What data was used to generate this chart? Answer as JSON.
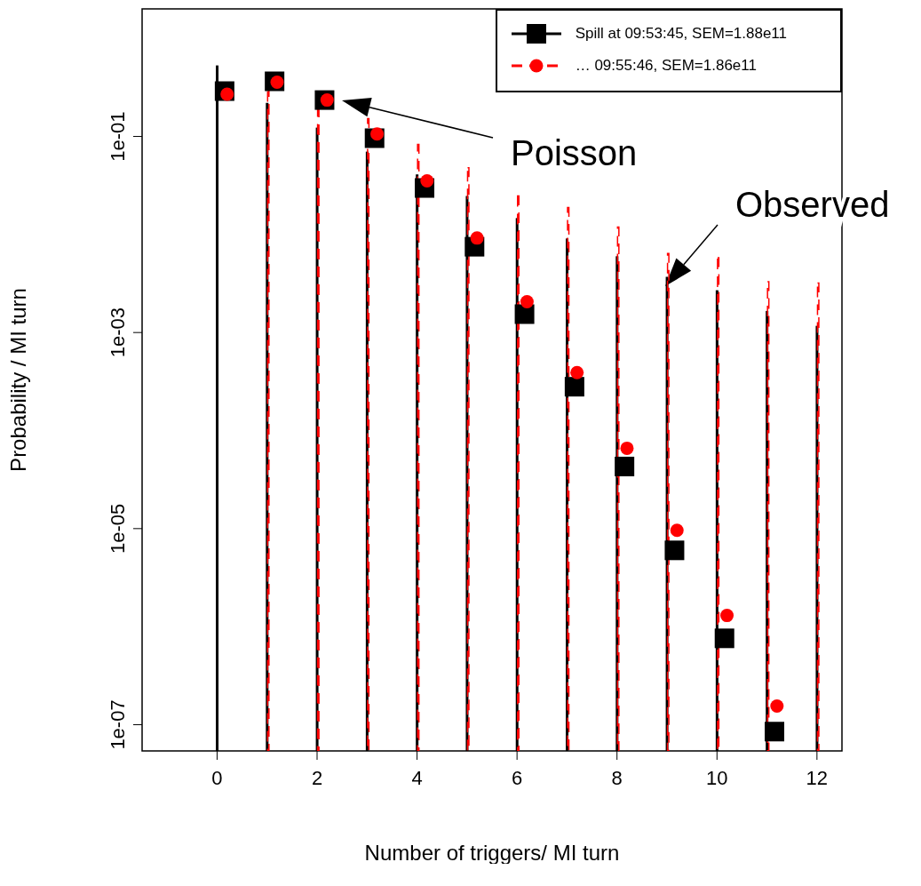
{
  "chart_data": {
    "type": "bar",
    "xlabel": "Number of triggers/ MI turn",
    "ylabel": "Probability / MI turn",
    "log": "y",
    "grid": false,
    "legend": "top right",
    "xlim": [
      -1.5,
      12.5
    ],
    "xticks": [
      0,
      2,
      4,
      6,
      8,
      10,
      12
    ],
    "ylim": [
      5.4e-08,
      2
    ],
    "yticks": [
      {
        "value": 0.1,
        "label": "1e-01"
      },
      {
        "value": 0.001,
        "label": "1e-03"
      },
      {
        "value": 1e-05,
        "label": "1e-05"
      },
      {
        "value": 1e-07,
        "label": "1e-07"
      }
    ],
    "series": [
      {
        "name": "Spill at 09:53:45, SEM=1.88e11",
        "color": "#000000",
        "line_style": "solid",
        "marker": "square",
        "x": [
          0,
          1,
          2,
          3,
          4,
          5,
          6,
          7,
          8,
          9,
          10,
          11,
          12
        ],
        "values": [
          0.53,
          0.22,
          0.123,
          0.07,
          0.041,
          0.0247,
          0.0147,
          0.0091,
          0.006,
          0.0037,
          0.0027,
          0.00166,
          0.00117
        ]
      },
      {
        "name": "… 09:55:46, SEM=1.86e11",
        "color": "#ff0000",
        "line_style": "dashed",
        "marker": "circle",
        "x": [
          1,
          2,
          3,
          4,
          5,
          6,
          7,
          8,
          9,
          10,
          11,
          12
        ],
        "values": [
          0.315,
          0.195,
          0.152,
          0.083,
          0.048,
          0.0247,
          0.0188,
          0.0119,
          0.0064,
          0.0058,
          0.0033,
          0.0032
        ]
      },
      {
        "type": "scatter",
        "color": "#000000",
        "marker": "square",
        "x": [
          0.15,
          1.15,
          2.15,
          3.15,
          4.15,
          5.15,
          6.15,
          7.15,
          8.15,
          9.15,
          10.15,
          11.15
        ],
        "values": [
          0.29,
          0.365,
          0.235,
          0.096,
          0.0298,
          0.0075,
          0.00154,
          0.00028,
          4.3e-05,
          6e-06,
          7.6e-07,
          8.5e-08
        ]
      },
      {
        "type": "scatter",
        "color": "#ff0000",
        "marker": "circle",
        "x": [
          0.2,
          1.2,
          2.2,
          3.2,
          4.2,
          5.2,
          6.2,
          7.2,
          8.2,
          9.2,
          10.2,
          11.2
        ],
        "values": [
          0.27,
          0.357,
          0.235,
          0.106,
          0.0352,
          0.0092,
          0.00206,
          0.00039,
          6.6e-05,
          9.6e-06,
          1.3e-06,
          1.55e-07
        ]
      }
    ],
    "annotations": [
      "Poisson",
      "Observed"
    ]
  }
}
